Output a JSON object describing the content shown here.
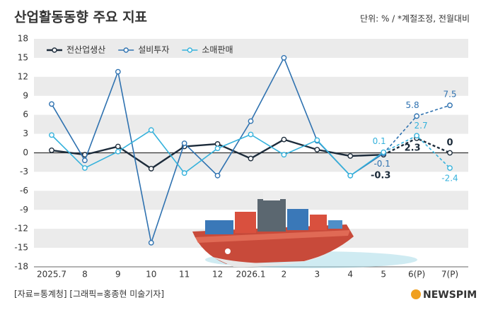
{
  "chart_data": {
    "type": "line",
    "title": "산업활동동향 주요 지표",
    "subtitle": "단위: % / *계절조정, 전월대비",
    "source": "[자료=통계청] [그래픽=홍종현 미술기자]",
    "brand": "NEWSPIM",
    "categories": [
      "2025.7",
      "8",
      "9",
      "10",
      "11",
      "12",
      "2026.1",
      "2",
      "3",
      "4",
      "5",
      "6(P)",
      "7(P)"
    ],
    "projection_start": 10,
    "series": [
      {
        "name": "전산업생산",
        "color": "#1c2b3a",
        "values": [
          0.4,
          -0.3,
          1.0,
          -2.5,
          1.0,
          1.4,
          -0.9,
          2.1,
          0.5,
          -0.5,
          -0.3,
          2.3,
          0
        ],
        "value_labels": [
          null,
          null,
          null,
          null,
          null,
          null,
          null,
          null,
          null,
          null,
          "-0.3",
          "2.3",
          "0"
        ]
      },
      {
        "name": "설비투자",
        "color": "#2f72b0",
        "values": [
          7.7,
          -1.2,
          12.8,
          -14.2,
          1.5,
          -3.6,
          5.0,
          15.0,
          1.9,
          -3.6,
          -0.1,
          5.8,
          7.5
        ],
        "value_labels": [
          null,
          null,
          null,
          null,
          null,
          null,
          null,
          null,
          null,
          null,
          "-0.1",
          "5.8",
          "7.5"
        ]
      },
      {
        "name": "소매판매",
        "color": "#35b2dc",
        "values": [
          2.8,
          -2.4,
          0.2,
          3.6,
          -3.2,
          0.7,
          2.9,
          -0.3,
          2.0,
          -3.6,
          0.1,
          2.7,
          -2.4
        ],
        "value_labels": [
          null,
          null,
          null,
          null,
          null,
          null,
          null,
          null,
          null,
          null,
          "0.1",
          "2.7",
          "-2.4"
        ]
      }
    ],
    "ylim": [
      -18,
      18
    ],
    "yticks": [
      -18,
      -15,
      -12,
      -9,
      -6,
      -3,
      0,
      3,
      6,
      9,
      12,
      15,
      18
    ],
    "grid": true
  }
}
